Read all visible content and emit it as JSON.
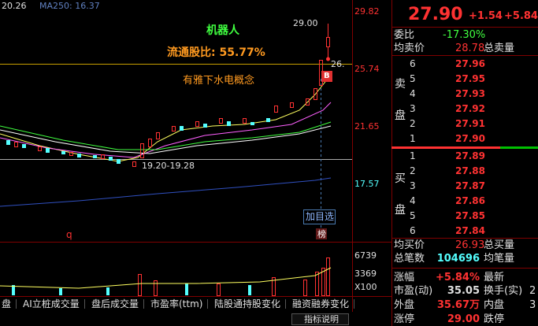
{
  "top_bar": {
    "ma_a": "20.26",
    "ma250": "MA250: 16.37"
  },
  "price_axis": [
    "29.82",
    "25.74",
    "21.65",
    "17.57"
  ],
  "volume_axis": [
    "6739",
    "3369",
    "X100"
  ],
  "annotations": {
    "high": "29.00",
    "current": "26.",
    "concept1": "机器人",
    "float_ratio": "流通股比: 55.77%",
    "concept2": "有雅下水电概念",
    "buy_signal": "B",
    "range": "19.20-19.28",
    "add_watch": "加目选",
    "q": "q",
    "rank": "榜"
  },
  "tabs": [
    "盘",
    "AI立桩成交量",
    "盘后成交量",
    "市盈率(ttm)",
    "陆股通持股变化",
    "融资融券变化"
  ],
  "footer_button": "指标说明",
  "quote": {
    "price": "27.90",
    "change": "+1.54",
    "change_pct": "+5.84%"
  },
  "order_book": {
    "wei_bi_label": "委比",
    "wei_bi": "-17.30%",
    "avg_ask_label": "均卖价",
    "avg_ask": "28.78",
    "total_ask_label": "总卖量",
    "ask_side": [
      "卖",
      "盘"
    ],
    "asks": [
      [
        "6",
        "27.96"
      ],
      [
        "5",
        "27.95"
      ],
      [
        "4",
        "27.93"
      ],
      [
        "3",
        "27.92"
      ],
      [
        "2",
        "27.91"
      ],
      [
        "1",
        "27.90"
      ]
    ],
    "bid_side": [
      "买",
      "盘"
    ],
    "bids": [
      [
        "1",
        "27.89"
      ],
      [
        "2",
        "27.88"
      ],
      [
        "3",
        "27.87"
      ],
      [
        "4",
        "27.86"
      ],
      [
        "5",
        "27.85"
      ],
      [
        "6",
        "27.84"
      ]
    ],
    "avg_bid_label": "均买价",
    "avg_bid": "26.93",
    "total_bid_label": "总买量"
  },
  "stats": [
    [
      "总笔数",
      "104696",
      "均笔量"
    ],
    [
      "涨幅",
      "+5.84%",
      "最新"
    ],
    [
      "市盈(动)",
      "35.05",
      "换手(实)",
      "2"
    ],
    [
      "外盘",
      "35.67万",
      "内盘",
      "3"
    ],
    [
      "涨停",
      "29.00",
      "跌停"
    ]
  ]
}
